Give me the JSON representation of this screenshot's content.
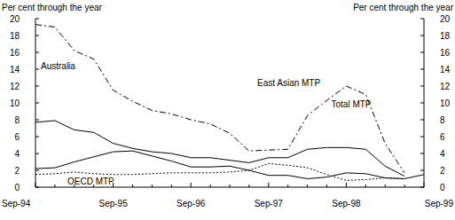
{
  "chart_data": {
    "type": "line",
    "y_label": "Per cent through the year",
    "y2_label": "Per cent through the year",
    "categories": [
      "Sep-94",
      null,
      null,
      null,
      "Sep-95",
      null,
      null,
      null,
      "Sep-96",
      null,
      null,
      null,
      "Sep-97",
      null,
      null,
      null,
      "Sep-98",
      null,
      null,
      null,
      "Sep-99"
    ],
    "series": [
      {
        "name": "Australia",
        "color": "#000000",
        "line_style": "solid",
        "values": [
          2.2,
          2.3,
          3.0,
          3.6,
          4.2,
          4.3,
          3.7,
          3.1,
          2.4,
          2.4,
          2.5,
          2.0,
          1.4,
          1.4,
          1.0,
          1.2,
          1.7,
          1.6,
          1.1,
          1.0,
          1.5
        ]
      },
      {
        "name": "OECD MTP",
        "color": "#000000",
        "line_style": "dotted",
        "values": [
          1.5,
          1.6,
          1.8,
          1.6,
          1.5,
          1.5,
          1.6,
          1.7,
          1.7,
          1.7,
          1.8,
          2.0,
          2.8,
          2.6,
          2.3,
          1.5,
          0.8,
          0.9,
          1.1,
          1.0,
          null
        ]
      },
      {
        "name": "East Asian MTP",
        "color": "#000000",
        "line_style": "dashdot",
        "values": [
          19.3,
          19.0,
          16.2,
          15.2,
          11.5,
          10.2,
          9.1,
          8.7,
          8.0,
          7.5,
          6.4,
          4.3,
          4.4,
          4.5,
          8.5,
          10.3,
          12.0,
          11.0,
          5.2,
          1.7,
          null
        ]
      },
      {
        "name": "Total MTP",
        "color": "#000000",
        "line_style": "solid",
        "values": [
          7.7,
          7.9,
          6.8,
          6.5,
          5.2,
          4.6,
          4.2,
          4.0,
          3.5,
          3.5,
          3.2,
          2.9,
          3.5,
          3.5,
          4.5,
          4.7,
          4.7,
          4.5,
          2.5,
          1.3,
          null
        ]
      }
    ],
    "ylim": [
      0,
      20
    ],
    "yticks": [
      0,
      2,
      4,
      6,
      8,
      10,
      12,
      14,
      16,
      18,
      20
    ],
    "y2lim": [
      0,
      20
    ],
    "y2ticks": [
      0,
      2,
      4,
      6,
      8,
      10,
      12,
      14,
      16,
      18,
      20
    ],
    "grid": false
  }
}
